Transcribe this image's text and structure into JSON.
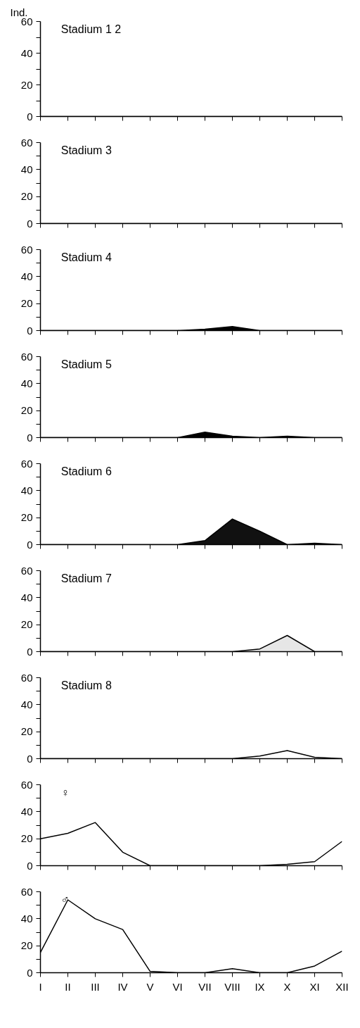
{
  "chart_data": [
    {
      "type": "area",
      "title": "Stadium 1 2",
      "ylabel": "Ind.",
      "categories": [
        null,
        null,
        null,
        null,
        null,
        null,
        null,
        null,
        null,
        null,
        null,
        null
      ],
      "tick_labels": "y",
      "ylim": [
        0,
        60
      ],
      "yticks": [
        0,
        {
          "value": 10,
          "label": null
        },
        20,
        {
          "value": 30,
          "label": null
        },
        40,
        {
          "value": 50,
          "label": null
        },
        60
      ],
      "series": [
        {
          "type": "line",
          "color": "#000000",
          "values": [
            0,
            0,
            0,
            0,
            0,
            0,
            0,
            0,
            0,
            0,
            0,
            0
          ]
        }
      ]
    },
    {
      "type": "area",
      "title": "Stadium 3",
      "categories": [
        null,
        null,
        null,
        null,
        null,
        null,
        null,
        null,
        null,
        null,
        null,
        null
      ],
      "tick_labels": "y",
      "ylim": [
        0,
        60
      ],
      "yticks": [
        0,
        {
          "value": 10,
          "label": null
        },
        20,
        {
          "value": 30,
          "label": null
        },
        40,
        {
          "value": 50,
          "label": null
        },
        60
      ],
      "series": [
        {
          "type": "line",
          "color": "#000000",
          "values": [
            0,
            0,
            0,
            0,
            0,
            0,
            0,
            0,
            0,
            0,
            0,
            0
          ]
        }
      ]
    },
    {
      "type": "area",
      "title": "Stadium 4",
      "categories": [
        null,
        null,
        null,
        null,
        null,
        null,
        null,
        null,
        null,
        null,
        null,
        null
      ],
      "tick_labels": "y",
      "ylim": [
        0,
        60
      ],
      "yticks": [
        0,
        {
          "value": 10,
          "label": null
        },
        20,
        {
          "value": 30,
          "label": null
        },
        40,
        {
          "value": 50,
          "label": null
        },
        60
      ],
      "series": [
        {
          "color": "#000000",
          "values": [
            0,
            0,
            0,
            0,
            0,
            0,
            1,
            3,
            0,
            0,
            0,
            0
          ]
        }
      ]
    },
    {
      "type": "area",
      "title": "Stadium 5",
      "categories": [
        null,
        null,
        null,
        null,
        null,
        null,
        null,
        null,
        null,
        null,
        null,
        null
      ],
      "tick_labels": "y",
      "ylim": [
        0,
        60
      ],
      "yticks": [
        0,
        {
          "value": 10,
          "label": null
        },
        20,
        {
          "value": 30,
          "label": null
        },
        40,
        {
          "value": 50,
          "label": null
        },
        60
      ],
      "series": [
        {
          "color": "#000000",
          "values": [
            0,
            0,
            0,
            0,
            0,
            0,
            4,
            1,
            0,
            1,
            0,
            0
          ]
        }
      ]
    },
    {
      "type": "area",
      "title": "Stadium 6",
      "categories": [
        null,
        null,
        null,
        null,
        null,
        null,
        null,
        null,
        null,
        null,
        null,
        null
      ],
      "tick_labels": "y",
      "ylim": [
        0,
        60
      ],
      "yticks": [
        0,
        {
          "value": 10,
          "label": null
        },
        20,
        {
          "value": 30,
          "label": null
        },
        40,
        {
          "value": 50,
          "label": null
        },
        60
      ],
      "series": [
        {
          "color": "#111111",
          "values": [
            0,
            0,
            0,
            0,
            0,
            0,
            3,
            19,
            10,
            0,
            1,
            0
          ]
        }
      ]
    },
    {
      "type": "area",
      "title": "Stadium 7",
      "categories": [
        null,
        null,
        null,
        null,
        null,
        null,
        null,
        null,
        null,
        null,
        null,
        null
      ],
      "tick_labels": "y",
      "ylim": [
        0,
        60
      ],
      "yticks": [
        0,
        {
          "value": 10,
          "label": null
        },
        20,
        {
          "value": 30,
          "label": null
        },
        40,
        {
          "value": 50,
          "label": null
        },
        60
      ],
      "series": [
        {
          "color": "#e6e6e6",
          "values": [
            0,
            0,
            0,
            0,
            0,
            0,
            0,
            0,
            2,
            12,
            0,
            0
          ]
        }
      ]
    },
    {
      "type": "area",
      "title": "Stadium 8",
      "categories": [
        null,
        null,
        null,
        null,
        null,
        null,
        null,
        null,
        null,
        null,
        null,
        null
      ],
      "tick_labels": "y",
      "ylim": [
        0,
        60
      ],
      "yticks": [
        0,
        {
          "value": 10,
          "label": null
        },
        20,
        {
          "value": 30,
          "label": null
        },
        40,
        {
          "value": 50,
          "label": null
        },
        60
      ],
      "series": [
        {
          "type": "line",
          "color": "#000000",
          "values": [
            0,
            0,
            0,
            0,
            0,
            0,
            0,
            0,
            2,
            6,
            1,
            0
          ]
        }
      ]
    },
    {
      "type": "area",
      "title": "♀",
      "categories": [
        null,
        null,
        null,
        null,
        null,
        null,
        null,
        null,
        null,
        null,
        null,
        null
      ],
      "tick_labels": "y",
      "ylim": [
        0,
        60
      ],
      "yticks": [
        0,
        {
          "value": 10,
          "label": null
        },
        20,
        {
          "value": 30,
          "label": null
        },
        40,
        {
          "value": 50,
          "label": null
        },
        60
      ],
      "series": [
        {
          "type": "line",
          "color": "#000000",
          "values": [
            20,
            24,
            32,
            10,
            0,
            0,
            0,
            0,
            0,
            1,
            3,
            18
          ]
        }
      ]
    },
    {
      "type": "area",
      "title": "♂",
      "categories": [
        "I",
        "II",
        "III",
        "IV",
        "V",
        "VI",
        "VII",
        "VIII",
        "IX",
        "X",
        "XI",
        "XII"
      ],
      "ylim": [
        0,
        60
      ],
      "yticks": [
        0,
        {
          "value": 10,
          "label": null
        },
        20,
        {
          "value": 30,
          "label": null
        },
        40,
        {
          "value": 50,
          "label": null
        },
        60
      ],
      "series": [
        {
          "type": "line",
          "color": "#000000",
          "values": [
            15,
            54,
            40,
            32,
            1,
            0,
            0,
            3,
            0,
            0,
            5,
            16
          ]
        }
      ]
    }
  ]
}
